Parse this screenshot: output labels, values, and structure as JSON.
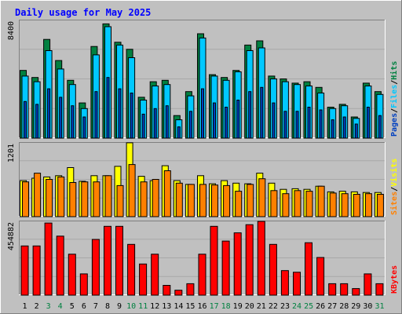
{
  "chart_data": {
    "type": "bar",
    "title": "Daily usage for May 2025",
    "categories": [
      "1",
      "2",
      "3",
      "4",
      "5",
      "6",
      "7",
      "8",
      "9",
      "10",
      "11",
      "12",
      "13",
      "14",
      "15",
      "16",
      "17",
      "18",
      "19",
      "20",
      "21",
      "22",
      "23",
      "24",
      "25",
      "26",
      "27",
      "28",
      "29",
      "30",
      "31"
    ],
    "weekend_days": [
      3,
      4,
      10,
      11,
      17,
      18,
      24,
      25,
      31
    ],
    "colors": {
      "background": "#c0c0c0",
      "title": "#0000ff",
      "hits": "#008040",
      "files": "#00c8ff",
      "pages": "#0040c0",
      "visits": "#ffff00",
      "sites": "#ff8000",
      "kbytes": "#ff0000",
      "weekday_label": "#000000",
      "weekend_label": "#008040"
    },
    "panels": [
      {
        "id": "hits_files_pages",
        "max_label": "8400",
        "ymax": 8400,
        "legend": [
          {
            "label": "Pages",
            "color": "#0040c0"
          },
          {
            "label": "Files",
            "color": "#00c8ff"
          },
          {
            "label": "Hits",
            "color": "#008040"
          }
        ],
        "series": [
          {
            "name": "Hits",
            "values": [
              4800,
              4300,
              7000,
              5500,
              4100,
              2500,
              6500,
              8100,
              6800,
              6300,
              2900,
              4000,
              4100,
              1600,
              3300,
              7400,
              4500,
              4300,
              4800,
              6600,
              6900,
              4400,
              4200,
              3900,
              4000,
              3600,
              2200,
              2400,
              1500,
              3900,
              3300
            ]
          },
          {
            "name": "Files",
            "values": [
              4400,
              4000,
              6200,
              4900,
              3800,
              2100,
              5900,
              7900,
              6600,
              5700,
              2700,
              3700,
              3800,
              1300,
              3000,
              7100,
              4400,
              4100,
              4700,
              6200,
              6400,
              4200,
              4000,
              3800,
              3700,
              3200,
              2100,
              2300,
              1400,
              3700,
              3100
            ]
          },
          {
            "name": "Pages",
            "values": [
              2600,
              2400,
              3500,
              2900,
              2300,
              1500,
              3300,
              4300,
              3500,
              3200,
              1700,
              2100,
              2300,
              800,
              1900,
              3500,
              2500,
              2200,
              2700,
              3300,
              3600,
              2500,
              1900,
              1900,
              2200,
              2000,
              1300,
              1500,
              1000,
              2200,
              1600
            ]
          }
        ]
      },
      {
        "id": "visits_sites",
        "max_label": "1201",
        "ymax": 1201,
        "legend": [
          {
            "label": "Sites",
            "color": "#ff8000"
          },
          {
            "label": "Visits",
            "color": "#ffff00"
          }
        ],
        "series": [
          {
            "name": "Visits",
            "values": [
              580,
              620,
              640,
              660,
              790,
              570,
              660,
              660,
              810,
              1190,
              650,
              580,
              820,
              580,
              520,
              660,
              530,
              580,
              540,
              530,
              700,
              540,
              440,
              450,
              440,
              490,
              400,
              410,
              400,
              390,
              390
            ]
          },
          {
            "name": "Sites",
            "values": [
              560,
              700,
              600,
              640,
              550,
              560,
              560,
              660,
              500,
              840,
              560,
              600,
              740,
              540,
              520,
              520,
              510,
              500,
              410,
              520,
              610,
              420,
              370,
              420,
              410,
              490,
              380,
              370,
              360,
              370,
              360
            ]
          }
        ]
      },
      {
        "id": "kbytes",
        "max_label": "454882",
        "ymax": 454882,
        "legend": [
          {
            "label": "KBytes",
            "color": "#ff0000"
          }
        ],
        "series": [
          {
            "name": "KBytes",
            "values": [
              300000,
              300000,
              440000,
              360000,
              250000,
              130000,
              340000,
              420000,
              420000,
              310000,
              190000,
              250000,
              60000,
              30000,
              70000,
              250000,
              420000,
              330000,
              380000,
              430000,
              450000,
              310000,
              150000,
              140000,
              320000,
              230000,
              70000,
              70000,
              40000,
              130000,
              70000
            ]
          }
        ]
      }
    ]
  }
}
